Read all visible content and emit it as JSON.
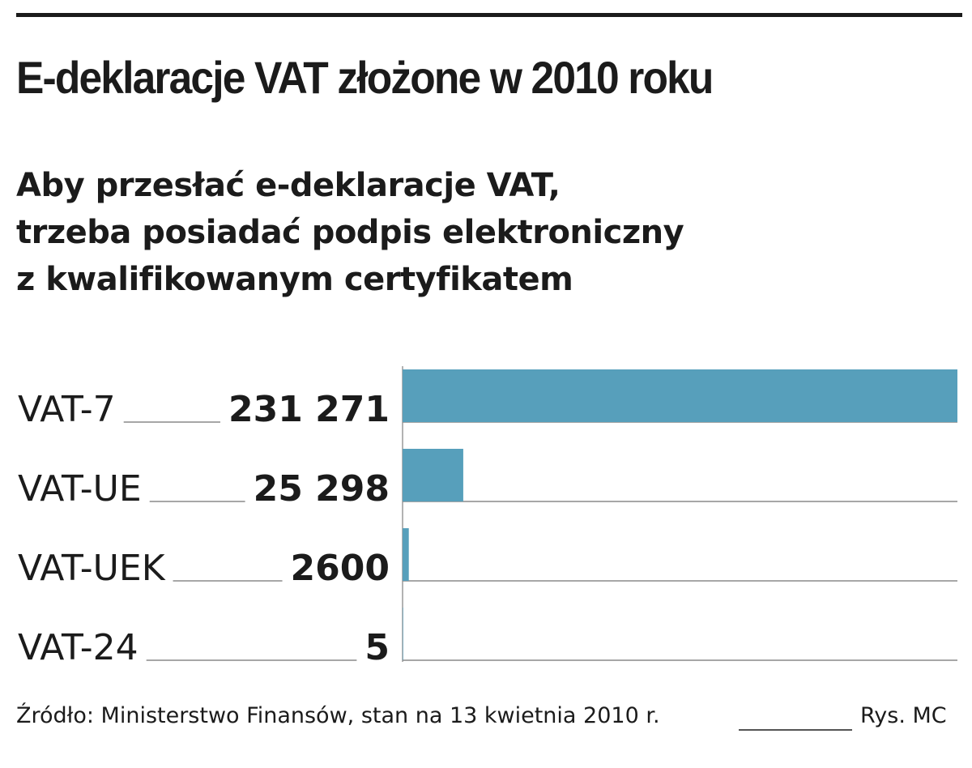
{
  "chart_data": {
    "type": "bar",
    "orientation": "horizontal",
    "title": "E-deklaracje VAT złożone w 2010 roku",
    "subtitle_lines": [
      "Aby przesłać e-deklaracje VAT,",
      "trzeba posiadać podpis elektroniczny",
      "z kwalifikowanym certyfikatem"
    ],
    "categories": [
      "VAT-7",
      "VAT-UE",
      "VAT-UEK",
      "VAT-24"
    ],
    "values": [
      231271,
      25298,
      2600,
      5
    ],
    "value_labels": [
      "231 271",
      "25 298",
      "2600",
      "5"
    ],
    "xlim": [
      0,
      231271
    ],
    "bar_color": "#579fbb",
    "source": "Źródło: Ministerstwo Finansów, stan na 13 kwietnia 2010 r.",
    "credit": "Rys. MC"
  }
}
